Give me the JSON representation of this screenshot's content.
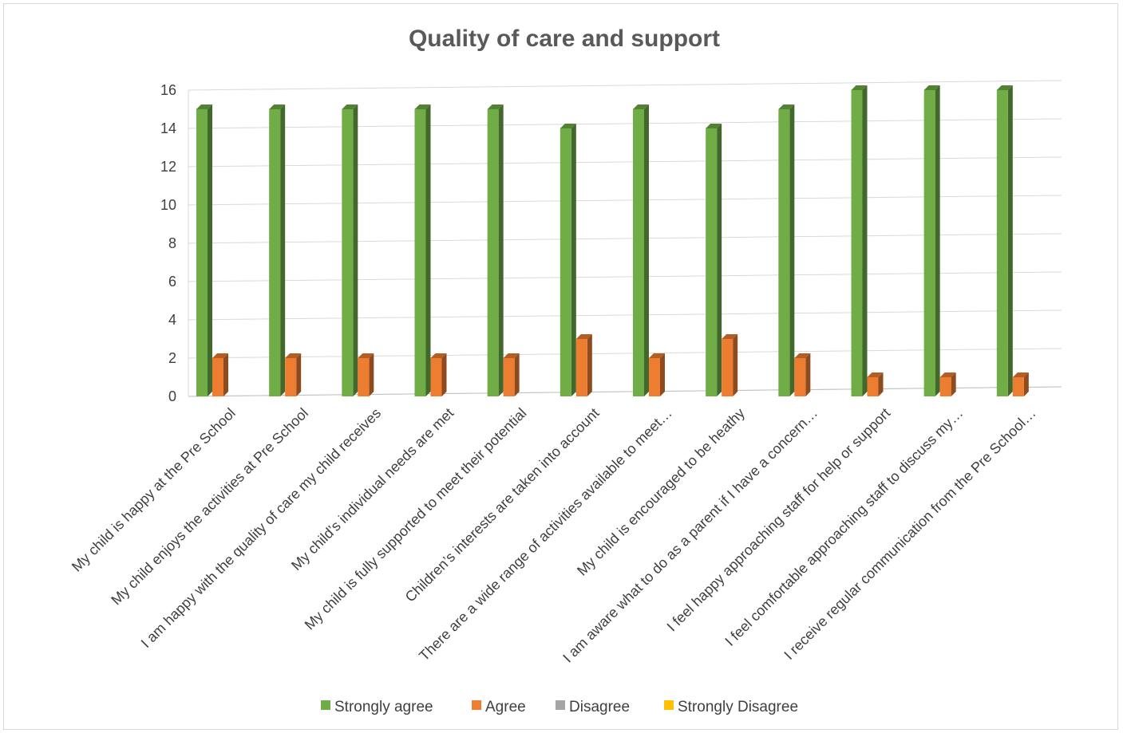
{
  "chart_data": {
    "type": "bar",
    "title": "Quality of care and support",
    "categories": [
      "My child is happy at the Pre School",
      "My child enjoys the activities at Pre School",
      "I am happy with the quality of care my child receives",
      "My child’s individual needs are met",
      "My child is fully supported to meet their potential",
      "Children’s interests are taken into account",
      "There are a wide range of activities available to meet…",
      "My child is encouraged to be heathy",
      "I am aware what to do as a parent if I have a concern…",
      "I feel happy approaching staff for help or support",
      "I feel comfortable approaching staff to discuss my…",
      "I receive regular communication from the Pre School…"
    ],
    "series": [
      {
        "name": "Strongly agree",
        "color": "#70ad47",
        "values": [
          15,
          15,
          15,
          15,
          15,
          14,
          15,
          14,
          15,
          16,
          16,
          16
        ]
      },
      {
        "name": "Agree",
        "color": "#ed7d31",
        "values": [
          2,
          2,
          2,
          2,
          2,
          3,
          2,
          3,
          2,
          1,
          1,
          1
        ]
      },
      {
        "name": "Disagree",
        "color": "#a5a5a5",
        "values": [
          0,
          0,
          0,
          0,
          0,
          0,
          0,
          0,
          0,
          0,
          0,
          0
        ]
      },
      {
        "name": "Strongly Disagree",
        "color": "#ffc000",
        "values": [
          0,
          0,
          0,
          0,
          0,
          0,
          0,
          0,
          0,
          0,
          0,
          0
        ]
      }
    ],
    "ylim": [
      0,
      16
    ],
    "yticks": [
      0,
      2,
      4,
      6,
      8,
      10,
      12,
      14,
      16
    ],
    "grid": true,
    "legend": "bottom"
  }
}
